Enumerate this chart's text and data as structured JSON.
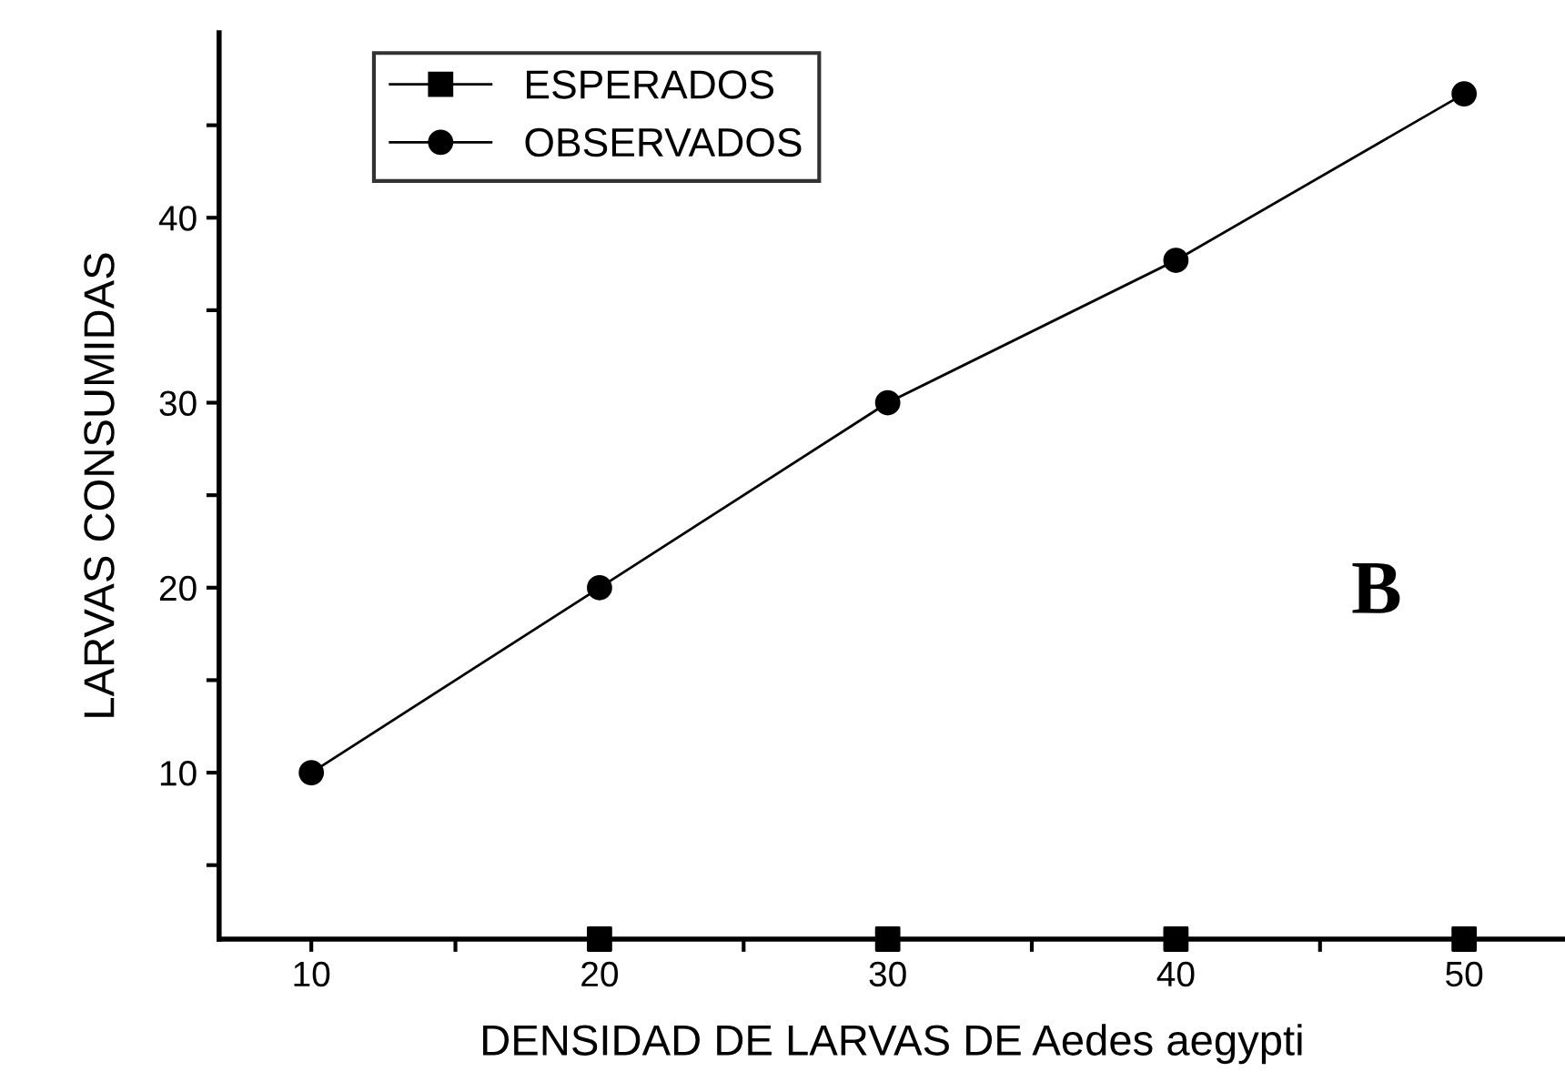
{
  "chart_data": {
    "type": "line",
    "xlabel": "DENSIDAD DE LARVAS DE Aedes aegypti",
    "ylabel": "LARVAS CONSUMIDAS",
    "xlim": [
      6.8,
      53.5
    ],
    "ylim": [
      1,
      50
    ],
    "xticks": [
      10,
      {
        "value": 15,
        "label": null
      },
      20,
      {
        "value": 25,
        "label": null
      },
      30,
      {
        "value": 35,
        "label": null
      },
      40,
      {
        "value": 45,
        "label": null
      },
      50
    ],
    "yticks": [
      {
        "value": 5,
        "label": null
      },
      10,
      {
        "value": 15,
        "label": null
      },
      20,
      {
        "value": 25,
        "label": null
      },
      30,
      {
        "value": 35,
        "label": null
      },
      40,
      {
        "value": 45,
        "label": null
      }
    ],
    "series": [
      {
        "name": "ESPERADOS",
        "type": "scatter",
        "color": "#000000",
        "marker": "square",
        "x": [
          20,
          30,
          40,
          50
        ],
        "values": [
          1,
          1,
          1,
          1
        ]
      },
      {
        "name": "OBSERVADOS",
        "color": "#000000",
        "marker": "circle",
        "x": [
          10,
          20,
          30,
          40,
          50
        ],
        "values": [
          10,
          20,
          30,
          37.7,
          46.7
        ]
      }
    ],
    "annotations": [
      "B"
    ],
    "legend": "top left",
    "grid": false,
    "line_style": "solid"
  }
}
